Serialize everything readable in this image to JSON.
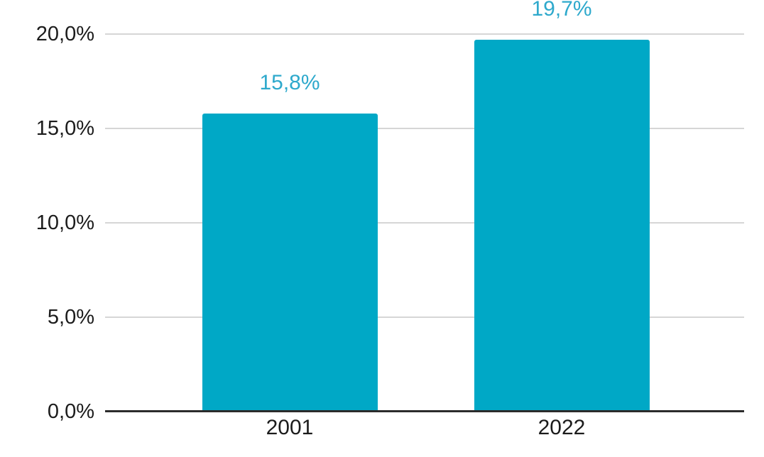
{
  "chart_data": {
    "type": "bar",
    "title": "",
    "xlabel": "",
    "ylabel": "",
    "categories": [
      "2001",
      "2022"
    ],
    "values": [
      15.8,
      19.7
    ],
    "value_labels": [
      "15,8%",
      "19,7%"
    ],
    "y_ticks": [
      {
        "value": 0,
        "label": "0,0%"
      },
      {
        "value": 5,
        "label": "5,0%"
      },
      {
        "value": 10,
        "label": "10,0%"
      },
      {
        "value": 15,
        "label": "15,0%"
      },
      {
        "value": 20,
        "label": "20,0%"
      }
    ],
    "ylim": [
      0,
      21.8
    ],
    "grid": true,
    "legend": "none",
    "colors": {
      "bar": "#00A8C6",
      "value_label": "#2EA9CC",
      "gridline": "#D6D6D6",
      "axis_line": "#2B2B2B",
      "tick_label": "#1C1C1C",
      "background": "#FFFFFF"
    }
  }
}
